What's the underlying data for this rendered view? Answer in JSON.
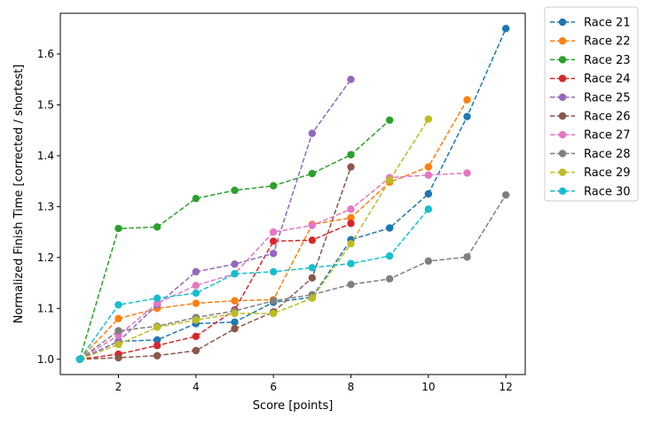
{
  "chart_data": {
    "type": "line",
    "xlabel": "Score [points]",
    "ylabel": "Normalized Finish Time [corrected / shortest]",
    "xlim": [
      0.5,
      12.5
    ],
    "ylim": [
      0.97,
      1.68
    ],
    "xticks": [
      2,
      4,
      6,
      8,
      10,
      12
    ],
    "yticks": [
      1.0,
      1.1,
      1.2,
      1.3,
      1.4,
      1.5,
      1.6
    ],
    "ytick_labels": [
      "1.0",
      "1.1",
      "1.2",
      "1.3",
      "1.4",
      "1.5",
      "1.6"
    ],
    "grid": false,
    "legend_placement": "outside-top-right",
    "series": [
      {
        "name": "Race 21",
        "color": "#1f77b4",
        "x": [
          1,
          2,
          3,
          4,
          5,
          6,
          7,
          8,
          9,
          10,
          11,
          12
        ],
        "values": [
          1.0,
          1.035,
          1.038,
          1.07,
          1.073,
          1.112,
          1.122,
          1.235,
          1.258,
          1.325,
          1.477,
          1.65
        ]
      },
      {
        "name": "Race 22",
        "color": "#ff7f0e",
        "x": [
          1,
          2,
          3,
          4,
          5,
          6,
          7,
          8,
          9,
          10,
          11
        ],
        "values": [
          1.0,
          1.08,
          1.1,
          1.11,
          1.115,
          1.117,
          1.265,
          1.278,
          1.348,
          1.378,
          1.51
        ]
      },
      {
        "name": "Race 23",
        "color": "#2ca02c",
        "x": [
          1,
          2,
          3,
          4,
          5,
          6,
          7,
          8,
          9
        ],
        "values": [
          1.0,
          1.257,
          1.26,
          1.316,
          1.332,
          1.341,
          1.365,
          1.402,
          1.47
        ]
      },
      {
        "name": "Race 24",
        "color": "#d62728",
        "x": [
          1,
          2,
          3,
          4,
          5,
          6,
          7,
          8
        ],
        "values": [
          1.0,
          1.01,
          1.027,
          1.045,
          1.097,
          1.232,
          1.234,
          1.267
        ]
      },
      {
        "name": "Race 25",
        "color": "#9467bd",
        "x": [
          1,
          2,
          3,
          4,
          5,
          6,
          7,
          8
        ],
        "values": [
          1.0,
          1.035,
          1.107,
          1.172,
          1.187,
          1.208,
          1.444,
          1.55
        ]
      },
      {
        "name": "Race 26",
        "color": "#8c564b",
        "x": [
          1,
          2,
          3,
          4,
          5,
          6,
          7,
          8
        ],
        "values": [
          1.0,
          1.003,
          1.007,
          1.017,
          1.06,
          1.093,
          1.16,
          1.378
        ]
      },
      {
        "name": "Race 27",
        "color": "#e377c2",
        "x": [
          1,
          2,
          3,
          4,
          5,
          6,
          7,
          8,
          9,
          10,
          11
        ],
        "values": [
          1.0,
          1.047,
          1.11,
          1.145,
          1.168,
          1.25,
          1.263,
          1.295,
          1.357,
          1.362,
          1.366
        ]
      },
      {
        "name": "Race 28",
        "color": "#7f7f7f",
        "x": [
          1,
          2,
          3,
          4,
          5,
          6,
          7,
          8,
          9,
          10,
          11,
          12
        ],
        "values": [
          1.0,
          1.056,
          1.065,
          1.082,
          1.095,
          1.115,
          1.127,
          1.147,
          1.158,
          1.193,
          1.201,
          1.323
        ]
      },
      {
        "name": "Race 29",
        "color": "#bcbd22",
        "x": [
          1,
          2,
          3,
          4,
          5,
          6,
          7,
          8,
          9,
          10
        ],
        "values": [
          1.0,
          1.029,
          1.063,
          1.077,
          1.09,
          1.09,
          1.12,
          1.227,
          1.352,
          1.472
        ]
      },
      {
        "name": "Race 30",
        "color": "#17becf",
        "x": [
          1,
          2,
          3,
          4,
          5,
          6,
          7,
          8,
          9,
          10
        ],
        "values": [
          1.0,
          1.107,
          1.12,
          1.13,
          1.168,
          1.172,
          1.18,
          1.188,
          1.203,
          1.295
        ]
      }
    ]
  }
}
